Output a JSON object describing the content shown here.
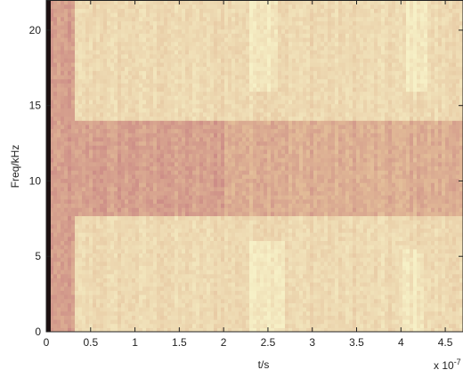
{
  "chart_data": {
    "type": "heatmap",
    "kind": "spectrogram",
    "title": "",
    "xlabel": "t/s",
    "ylabel": "Freq/kHz",
    "x_multiplier": "x 10",
    "x_multiplier_exponent": "-7",
    "xlim": [
      0,
      4.7
    ],
    "ylim": [
      0,
      22
    ],
    "xticks": [
      0,
      0.5,
      1,
      1.5,
      2,
      2.5,
      3,
      3.5,
      4,
      4.5
    ],
    "xtick_labels": [
      "0",
      "0.5",
      "1",
      "1.5",
      "2",
      "2.5",
      "3",
      "3.5",
      "4",
      "4.5"
    ],
    "yticks": [
      0,
      5,
      10,
      15,
      20
    ],
    "ytick_labels": [
      "0",
      "5",
      "10",
      "15",
      "20"
    ],
    "colormap": {
      "low": "#bf6f7c",
      "mid": "#e2bb97",
      "high": "#f6f0c6"
    },
    "colors": {
      "dark_edge": "#1c0f10",
      "axis": "#222222"
    },
    "regions": [
      {
        "t_start": 0.0,
        "t_end": 0.05,
        "f_low": 0,
        "f_high": 22,
        "level": 0.0
      },
      {
        "t_start": 0.05,
        "t_end": 0.32,
        "f_low": 0,
        "f_high": 22,
        "level": 0.3
      },
      {
        "t_start": 0.32,
        "t_end": 4.7,
        "f_low": 0,
        "f_high": 7.8,
        "level": 0.78
      },
      {
        "t_start": 0.32,
        "t_end": 4.7,
        "f_low": 14.0,
        "f_high": 22,
        "level": 0.78
      },
      {
        "t_start": 0.32,
        "t_end": 2.0,
        "f_low": 7.8,
        "f_high": 14.0,
        "level": 0.32
      },
      {
        "t_start": 2.0,
        "t_end": 4.7,
        "f_low": 7.8,
        "f_high": 14.0,
        "level": 0.42
      },
      {
        "t_start": 2.3,
        "t_end": 2.7,
        "f_low": 0,
        "f_high": 6.0,
        "level": 0.95
      },
      {
        "t_start": 2.3,
        "t_end": 2.6,
        "f_low": 16.0,
        "f_high": 22,
        "level": 0.93
      },
      {
        "t_start": 4.05,
        "t_end": 4.3,
        "f_low": 16.0,
        "f_high": 22,
        "level": 0.95
      },
      {
        "t_start": 4.0,
        "t_end": 4.25,
        "f_low": 0,
        "f_high": 5.5,
        "level": 0.92
      }
    ]
  }
}
